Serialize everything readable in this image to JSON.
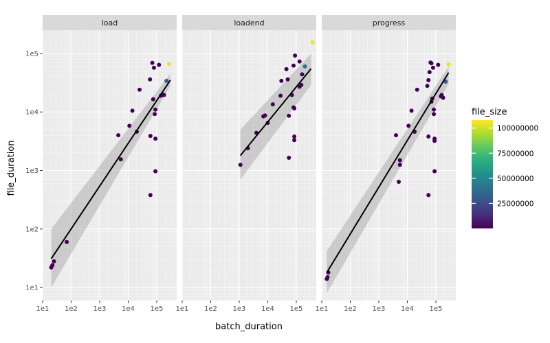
{
  "chart_data": {
    "type": "scatter",
    "facet_by": "event",
    "xlabel": "batch_duration",
    "ylabel": "file_duration",
    "x_scale": "log10",
    "y_scale": "log10",
    "xlim": [
      10,
      500000
    ],
    "ylim": [
      6,
      250000
    ],
    "x_ticks": [
      {
        "value": 10,
        "label": "1e1"
      },
      {
        "value": 100,
        "label": "1e2"
      },
      {
        "value": 1000,
        "label": "1e3"
      },
      {
        "value": 10000,
        "label": "1e4"
      },
      {
        "value": 100000,
        "label": "1e5"
      }
    ],
    "y_ticks": [
      {
        "value": 10,
        "label": "1e1"
      },
      {
        "value": 100,
        "label": "1e2"
      },
      {
        "value": 1000,
        "label": "1e3"
      },
      {
        "value": 10000,
        "label": "1e4"
      },
      {
        "value": 100000,
        "label": "1e5"
      }
    ],
    "grid": true,
    "legend": {
      "title": "file_size",
      "placement": "right",
      "type": "colorbar",
      "colormap": "viridis",
      "range": [
        0,
        108000000
      ],
      "ticks": [
        {
          "value": 25000000,
          "label": "25000000"
        },
        {
          "value": 50000000,
          "label": "50000000"
        },
        {
          "value": 75000000,
          "label": "75000000"
        },
        {
          "value": 100000000,
          "label": "100000000"
        }
      ]
    },
    "facets": [
      {
        "label": "load",
        "trend": {
          "x": [
            20,
            300000
          ],
          "y": [
            31,
            35000
          ],
          "ci_start": [
            10,
            100
          ],
          "ci_end": [
            28000,
            45000
          ]
        },
        "points": [
          {
            "x": 20,
            "y": 22,
            "size": 0
          },
          {
            "x": 22,
            "y": 24,
            "size": 0
          },
          {
            "x": 25,
            "y": 28,
            "size": 0
          },
          {
            "x": 70,
            "y": 60,
            "size": 0
          },
          {
            "x": 4500,
            "y": 4000,
            "size": 0
          },
          {
            "x": 5500,
            "y": 1550,
            "size": 0
          },
          {
            "x": 11000,
            "y": 5800,
            "size": 0
          },
          {
            "x": 14000,
            "y": 10500,
            "size": 0
          },
          {
            "x": 20000,
            "y": 4600,
            "size": 0
          },
          {
            "x": 25000,
            "y": 24000,
            "size": 0
          },
          {
            "x": 58000,
            "y": 36000,
            "size": 0
          },
          {
            "x": 60000,
            "y": 3900,
            "size": 0
          },
          {
            "x": 60000,
            "y": 380,
            "size": 0
          },
          {
            "x": 70000,
            "y": 69000,
            "size": 0
          },
          {
            "x": 75000,
            "y": 16500,
            "size": 0
          },
          {
            "x": 80000,
            "y": 57000,
            "size": 0
          },
          {
            "x": 85000,
            "y": 9200,
            "size": 0
          },
          {
            "x": 90000,
            "y": 11000,
            "size": 0
          },
          {
            "x": 90000,
            "y": 3500,
            "size": 0
          },
          {
            "x": 90000,
            "y": 970,
            "size": 0
          },
          {
            "x": 120000,
            "y": 64000,
            "size": 0
          },
          {
            "x": 140000,
            "y": 19000,
            "size": 0
          },
          {
            "x": 160000,
            "y": 20000,
            "size": 0
          },
          {
            "x": 180000,
            "y": 19500,
            "size": 0
          },
          {
            "x": 220000,
            "y": 34000,
            "size": 30000000
          },
          {
            "x": 270000,
            "y": 66000,
            "size": 105000000
          }
        ]
      },
      {
        "label": "loadend",
        "trend": {
          "x": [
            1100,
            330000
          ],
          "y": [
            1800,
            55000
          ],
          "ci_start": [
            700,
            5000
          ],
          "ci_end": [
            29000,
            100000
          ]
        },
        "points": [
          {
            "x": 1100,
            "y": 1250,
            "size": 0
          },
          {
            "x": 2000,
            "y": 2400,
            "size": 0
          },
          {
            "x": 4000,
            "y": 4400,
            "size": 0
          },
          {
            "x": 7000,
            "y": 8400,
            "size": 0
          },
          {
            "x": 8000,
            "y": 8700,
            "size": 0
          },
          {
            "x": 10000,
            "y": 6500,
            "size": 0
          },
          {
            "x": 15000,
            "y": 13500,
            "size": 0
          },
          {
            "x": 28000,
            "y": 19000,
            "size": 0
          },
          {
            "x": 30000,
            "y": 34000,
            "size": 0
          },
          {
            "x": 45000,
            "y": 54000,
            "size": 0
          },
          {
            "x": 50000,
            "y": 36000,
            "size": 0
          },
          {
            "x": 55000,
            "y": 8600,
            "size": 0
          },
          {
            "x": 55000,
            "y": 1650,
            "size": 0
          },
          {
            "x": 70000,
            "y": 19500,
            "size": 0
          },
          {
            "x": 80000,
            "y": 62000,
            "size": 0
          },
          {
            "x": 80000,
            "y": 12000,
            "size": 0
          },
          {
            "x": 85000,
            "y": 11500,
            "size": 0
          },
          {
            "x": 85000,
            "y": 3800,
            "size": 0
          },
          {
            "x": 85000,
            "y": 3300,
            "size": 0
          },
          {
            "x": 90000,
            "y": 92000,
            "size": 0
          },
          {
            "x": 130000,
            "y": 73000,
            "size": 0
          },
          {
            "x": 130000,
            "y": 27000,
            "size": 0
          },
          {
            "x": 150000,
            "y": 29000,
            "size": 0
          },
          {
            "x": 160000,
            "y": 44000,
            "size": 0
          },
          {
            "x": 200000,
            "y": 60000,
            "size": 40000000
          },
          {
            "x": 370000,
            "y": 155000,
            "size": 105000000
          }
        ]
      },
      {
        "label": "progress",
        "trend": {
          "x": [
            15,
            280000
          ],
          "y": [
            18,
            47000
          ],
          "ci_start": [
            8,
            42
          ],
          "ci_end": [
            30000,
            60000
          ]
        },
        "points": [
          {
            "x": 15,
            "y": 14,
            "size": 0
          },
          {
            "x": 16,
            "y": 15,
            "size": 0
          },
          {
            "x": 17,
            "y": 18,
            "size": 0
          },
          {
            "x": 4000,
            "y": 4000,
            "size": 0
          },
          {
            "x": 5000,
            "y": 640,
            "size": 0
          },
          {
            "x": 5500,
            "y": 1250,
            "size": 0
          },
          {
            "x": 5500,
            "y": 1500,
            "size": 0
          },
          {
            "x": 11000,
            "y": 5800,
            "size": 0
          },
          {
            "x": 14000,
            "y": 10500,
            "size": 0
          },
          {
            "x": 18000,
            "y": 4600,
            "size": 0
          },
          {
            "x": 22000,
            "y": 24000,
            "size": 0
          },
          {
            "x": 50000,
            "y": 28000,
            "size": 0
          },
          {
            "x": 55000,
            "y": 35000,
            "size": 0
          },
          {
            "x": 55000,
            "y": 3800,
            "size": 0
          },
          {
            "x": 55000,
            "y": 380,
            "size": 0
          },
          {
            "x": 60000,
            "y": 48000,
            "size": 0
          },
          {
            "x": 65000,
            "y": 70000,
            "size": 0
          },
          {
            "x": 70000,
            "y": 68000,
            "size": 0
          },
          {
            "x": 70000,
            "y": 15000,
            "size": 0
          },
          {
            "x": 75000,
            "y": 17000,
            "size": 0
          },
          {
            "x": 80000,
            "y": 57000,
            "size": 0
          },
          {
            "x": 85000,
            "y": 9200,
            "size": 0
          },
          {
            "x": 85000,
            "y": 11000,
            "size": 0
          },
          {
            "x": 90000,
            "y": 3200,
            "size": 0
          },
          {
            "x": 90000,
            "y": 3500,
            "size": 0
          },
          {
            "x": 90000,
            "y": 970,
            "size": 0
          },
          {
            "x": 120000,
            "y": 64000,
            "size": 0
          },
          {
            "x": 150000,
            "y": 18500,
            "size": 0
          },
          {
            "x": 160000,
            "y": 19500,
            "size": 0
          },
          {
            "x": 180000,
            "y": 17500,
            "size": 0
          },
          {
            "x": 220000,
            "y": 33000,
            "size": 30000000
          },
          {
            "x": 280000,
            "y": 65000,
            "size": 105000000
          }
        ]
      }
    ]
  }
}
